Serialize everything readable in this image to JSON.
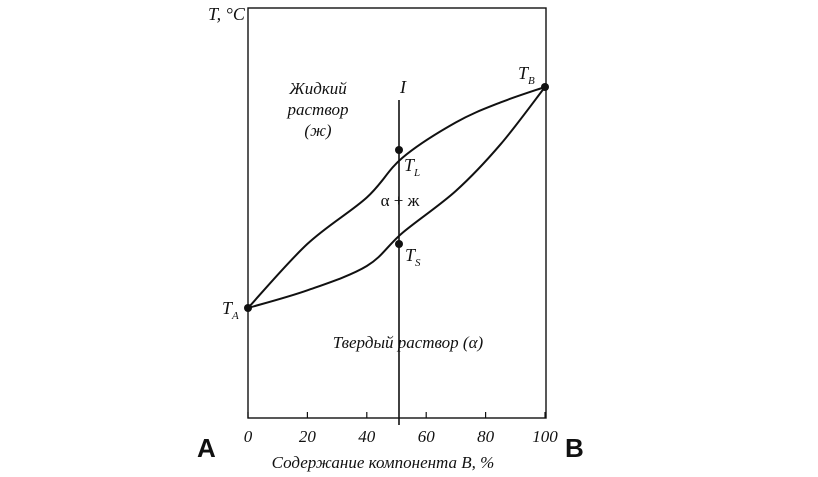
{
  "chart_data": {
    "type": "line",
    "ylabel": "T, °C",
    "xlabel": "Содержание компонента B, %",
    "x_ticks": [
      "0",
      "20",
      "40",
      "60",
      "80",
      "100"
    ],
    "xlim": [
      0,
      100
    ],
    "corner_left": "A",
    "corner_right": "B",
    "point_A": {
      "name": "T",
      "sub": "A"
    },
    "point_B": {
      "name": "T",
      "sub": "B"
    },
    "vertical_line": {
      "label": "I",
      "x": 52
    },
    "point_L": {
      "name": "T",
      "sub": "L"
    },
    "point_S": {
      "name": "T",
      "sub": "S"
    },
    "region_liquid": [
      "Жидкий",
      "раствор",
      "(ж)"
    ],
    "region_two_phase": "α + ж",
    "region_solid": "Твердый раствор (α)",
    "series": [
      {
        "id": "liquidus",
        "values": [
          0.0,
          0.29,
          0.5,
          0.68,
          0.84,
          0.93,
          1.0
        ]
      },
      {
        "id": "solidus",
        "values": [
          0.0,
          0.08,
          0.19,
          0.34,
          0.53,
          0.74,
          1.0
        ]
      }
    ],
    "series_x": [
      0,
      20,
      40,
      52,
      70,
      85,
      100
    ],
    "grid": false
  }
}
